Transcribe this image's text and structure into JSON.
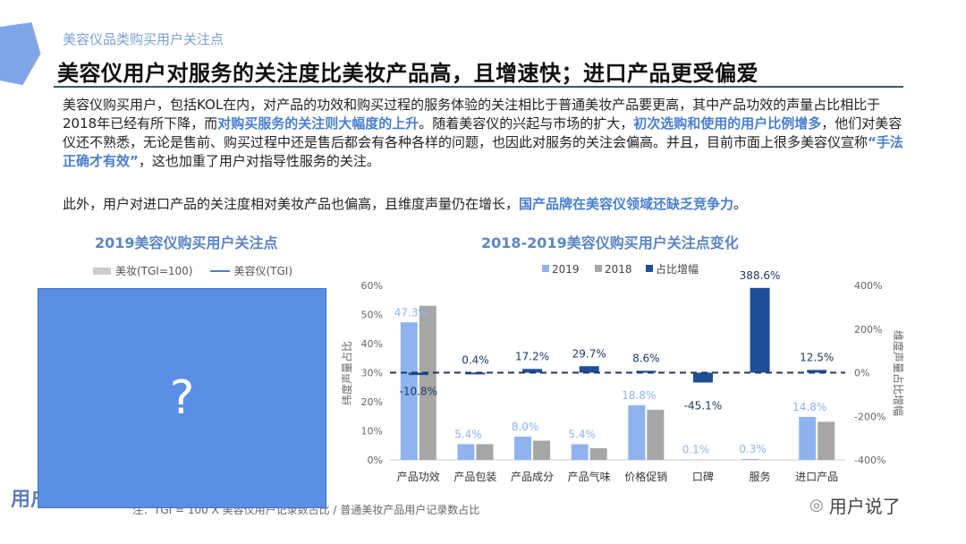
{
  "header": {
    "subtitle": "美容仪品类购买用户关注点",
    "title": "美容仪用户对服务的关注度比美妆产品高，且增速快；进口产品更受偏爱"
  },
  "body": {
    "p1_a": "美容仪购买用户，包括KOL在内，对产品的功效和购买过程的服务体验的关注相比于普通美妆产品要更高，其中产品功效的声量占比相比于2018年已经有所下降，而",
    "p1_h1": "对购买服务的关注则大幅度的上升",
    "p1_b": "。随着美容仪的兴起与市场的扩大，",
    "p1_h2": "初次选购和使用的用户比例增多",
    "p1_c": "，他们对美容仪还不熟悉，无论是售前、购买过程中还是售后都会有各种各样的问题，也因此对服务的关注会偏高。并且，目前市面上很多美容仪宣称",
    "p1_h3": "“手法正确才有效”",
    "p1_d": "，这也加重了用户对指导性服务的关注。",
    "p2_a": "此外，用户对进口产品的关注度相对美妆产品也偏高，且维度声量仍在增长，",
    "p2_h": "国产品牌在美容仪领域还缺乏竞争力",
    "p2_b": "。"
  },
  "left_chart": {
    "title": "2019美容仪购买用户关注点",
    "legend": [
      "美妆(TGI=100)",
      "美容仪(TGI)"
    ],
    "placeholder": "?",
    "note": "注：TGI = 100 X 美容仪用户记录数占比 / 普通美妆产品用户记录数占比"
  },
  "logos": {
    "left": "用户说",
    "right": "用户说了"
  },
  "colors": {
    "c2019": "#8fb3ef",
    "c2018": "#a6a6a6",
    "growth": "#1f4e99",
    "accent": "#5b86c6"
  },
  "chart_data": {
    "type": "bar",
    "title": "2018-2019美容仪购买用户关注点变化",
    "categories": [
      "产品功效",
      "产品包装",
      "产品成分",
      "产品气味",
      "价格促销",
      "口碑",
      "服务",
      "进口产品"
    ],
    "series": [
      {
        "name": "2019",
        "axis": "left",
        "values": [
          47.3,
          5.4,
          8.0,
          5.4,
          18.8,
          0.1,
          0.3,
          14.8
        ],
        "labels": [
          "47.3%",
          "5.4%",
          "8.0%",
          "5.4%",
          "18.8%",
          "0.1%",
          "0.3%",
          "14.8%"
        ]
      },
      {
        "name": "2018",
        "axis": "left",
        "values": [
          53.0,
          5.4,
          6.6,
          4.0,
          17.2,
          0,
          0,
          13.1
        ]
      },
      {
        "name": "占比增幅",
        "axis": "right",
        "values": [
          -10.8,
          0.4,
          17.2,
          29.7,
          8.6,
          -45.1,
          388.6,
          12.5
        ],
        "labels": [
          "-10.8%",
          "0.4%",
          "17.2%",
          "29.7%",
          "8.6%",
          "-45.1%",
          "388.6%",
          "12.5%"
        ]
      }
    ],
    "ylabel": "纬度声量占比",
    "y2label": "维度声量占比增幅",
    "ylim": [
      0,
      60
    ],
    "y2lim": [
      -400,
      400
    ],
    "yticks": [
      "0%",
      "10%",
      "20%",
      "30%",
      "40%",
      "50%",
      "60%"
    ],
    "y2ticks": [
      "-400%",
      "-200%",
      "0%",
      "200%",
      "400%"
    ],
    "legend_position": "top",
    "grid": false
  }
}
